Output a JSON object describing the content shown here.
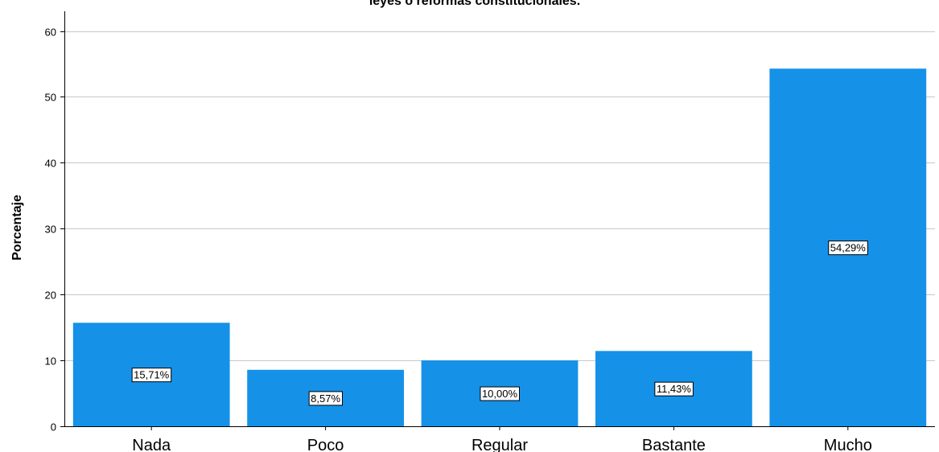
{
  "chart_data": {
    "type": "bar",
    "title": "leyes o reformas constitucionales.",
    "xlabel": "",
    "ylabel": "Porcentaje",
    "categories": [
      "Nada",
      "Poco",
      "Regular",
      "Bastante",
      "Mucho"
    ],
    "values": [
      15.71,
      8.57,
      10.0,
      11.43,
      54.29
    ],
    "data_labels": [
      "15,71%",
      "8,57%",
      "10,00%",
      "11,43%",
      "54,29%"
    ],
    "ylim": [
      0,
      63
    ],
    "yticks": [
      0,
      10,
      20,
      30,
      40,
      50,
      60
    ],
    "grid": true,
    "legend": "none",
    "bar_color": "#1591e8"
  }
}
